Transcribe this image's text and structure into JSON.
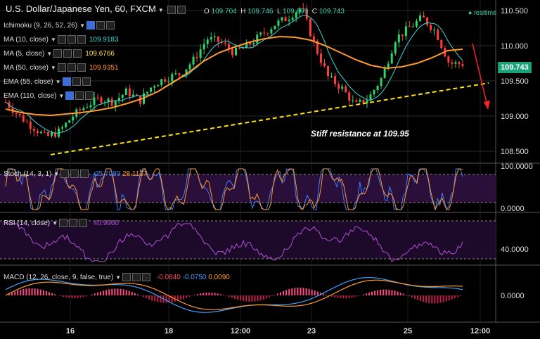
{
  "header": {
    "title": "U.S. Dollar/Japanese Yen, 60, FXCM",
    "ohlc": [
      {
        "k": "O",
        "v": "109.704"
      },
      {
        "k": "H",
        "v": "109.746"
      },
      {
        "k": "L",
        "v": "109.699"
      },
      {
        "k": "C",
        "v": "109.743"
      }
    ],
    "realtime": "realtime"
  },
  "indicators": [
    {
      "label": "Ichimoku (9, 26, 52, 26)",
      "value": "",
      "color": "#ffffff"
    },
    {
      "label": "MA (10, close)",
      "value": "109.9183",
      "color": "#3fd6d6"
    },
    {
      "label": "MA (5, close)",
      "value": "109.6766",
      "color": "#ffe14a"
    },
    {
      "label": "MA (50, close)",
      "value": "109.9351",
      "color": "#ff9a2a"
    },
    {
      "label": "EMA (55, close)",
      "value": "",
      "color": "#ffffff"
    },
    {
      "label": "EMA (110, close)",
      "value": "",
      "color": "#ffffff"
    }
  ],
  "annotation": "Stiff resistance at 109.95",
  "last_price": "109.743",
  "stoch_panel": {
    "label": "Stoch (14, 3, 1)",
    "v1": "25.7089",
    "v2": "28.1137"
  },
  "rsi_panel": {
    "label": "RSI (14, close)",
    "v1": "40.9960"
  },
  "macd_panel": {
    "label": "MACD (12, 26, close, 9, false, true)",
    "v1": "-0.0840",
    "v2": "-0.0750",
    "v3": "0.0090"
  },
  "colors": {
    "up": "#2fd36a",
    "down": "#ff3b3b",
    "trend": "#ffe600",
    "ma50": "#ff9a2a",
    "ma10": "#3fd6d6",
    "stochK": "#3f7fff",
    "stochD": "#ff9a2a",
    "rsi": "#b14fd6",
    "macd": "#3f9fff",
    "signal": "#ff9a2a"
  },
  "chart_data": [
    {
      "type": "line",
      "title": "U.S. Dollar/Japanese Yen, 60, FXCM",
      "x_ticks": [
        "16",
        "18",
        "12:00",
        "23",
        "25",
        "12:00"
      ],
      "y_ticks": [
        "110.500",
        "110.000",
        "109.500",
        "109.000",
        "108.500"
      ],
      "ylim": [
        108.35,
        110.6
      ],
      "series": [
        {
          "name": "MA (50, close)",
          "values": [
            109.1,
            109.05,
            109.02,
            109.01,
            109.03,
            109.05,
            109.08,
            109.12,
            109.18,
            109.25,
            109.35,
            109.48,
            109.62,
            109.78,
            109.9,
            109.98,
            110.05,
            110.1,
            110.13,
            110.12,
            110.08,
            110.0,
            109.9,
            109.8,
            109.72,
            109.68,
            109.7,
            109.75,
            109.83,
            109.93,
            109.95
          ]
        }
      ],
      "price": [
        109.2,
        109.0,
        108.85,
        108.7,
        108.78,
        109.0,
        109.15,
        109.25,
        109.2,
        109.35,
        109.22,
        109.45,
        109.55,
        109.6,
        109.8,
        110.1,
        110.05,
        109.9,
        110.0,
        110.15,
        110.3,
        110.4,
        110.55,
        110.0,
        109.55,
        109.4,
        109.15,
        109.25,
        109.55,
        110.1,
        110.25,
        110.4,
        110.2,
        109.75,
        109.74
      ],
      "trendline": [
        [
          0,
          108.45
        ],
        [
          34,
          109.47
        ]
      ],
      "last": 109.743
    },
    {
      "type": "line",
      "title": "Stoch (14, 3, 1)",
      "y_ticks": [
        "100.0000",
        "0.0000"
      ],
      "ylim": [
        0,
        100
      ],
      "levels": [
        80,
        20
      ]
    },
    {
      "type": "line",
      "title": "RSI (14, close)",
      "y_ticks": [
        "40.0000"
      ],
      "ylim": [
        20,
        80
      ],
      "levels": [
        70,
        30
      ]
    },
    {
      "type": "bar",
      "title": "MACD (12, 26, close, 9, false, true)",
      "y_ticks": [
        "0.0000"
      ]
    }
  ]
}
